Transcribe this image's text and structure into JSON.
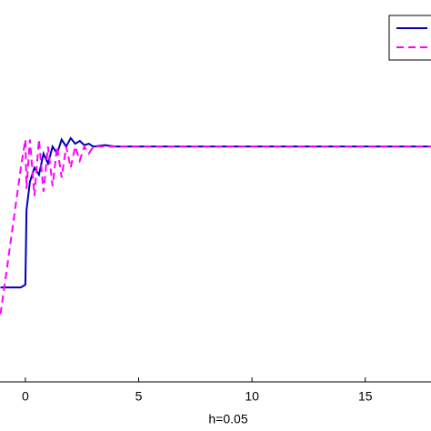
{
  "chart_data": {
    "type": "line",
    "xlabel": "h=0.05",
    "x": [
      -1.1,
      -0.8,
      -0.5,
      -0.2,
      0,
      0.05,
      0.2,
      0.4,
      0.6,
      0.8,
      1.0,
      1.2,
      1.4,
      1.6,
      1.8,
      2.0,
      2.2,
      2.4,
      2.6,
      2.8,
      3.0,
      3.5,
      4,
      6,
      8,
      10,
      12,
      14,
      16,
      18
    ],
    "series": [
      {
        "color": "#0000b4",
        "dash": false,
        "values": [
          0,
          0,
          0,
          0,
          0.02,
          0.55,
          0.75,
          0.85,
          0.8,
          0.95,
          0.88,
          1.0,
          0.95,
          1.05,
          1.0,
          1.06,
          1.02,
          1.04,
          1.01,
          1.02,
          1.0,
          1.01,
          1.0,
          1.0,
          1.0,
          1.0,
          1.0,
          1.0,
          1.0,
          1.0
        ]
      },
      {
        "color": "#ff00ff",
        "dash": true,
        "values": [
          -0.19,
          0.15,
          0.5,
          0.85,
          1.05,
          0.7,
          1.05,
          0.65,
          1.05,
          0.68,
          1.0,
          0.72,
          1.0,
          0.78,
          1.0,
          0.85,
          1.0,
          0.9,
          1.0,
          0.95,
          1.0,
          1.0,
          1.0,
          1.0,
          1.0,
          1.0,
          1.0,
          1.0,
          1.0,
          1.0
        ]
      }
    ],
    "xlim": [
      -1.12,
      17.9
    ],
    "xticks": [
      0,
      5,
      10,
      15
    ],
    "ylim": [
      -0.67,
      2.04
    ]
  }
}
